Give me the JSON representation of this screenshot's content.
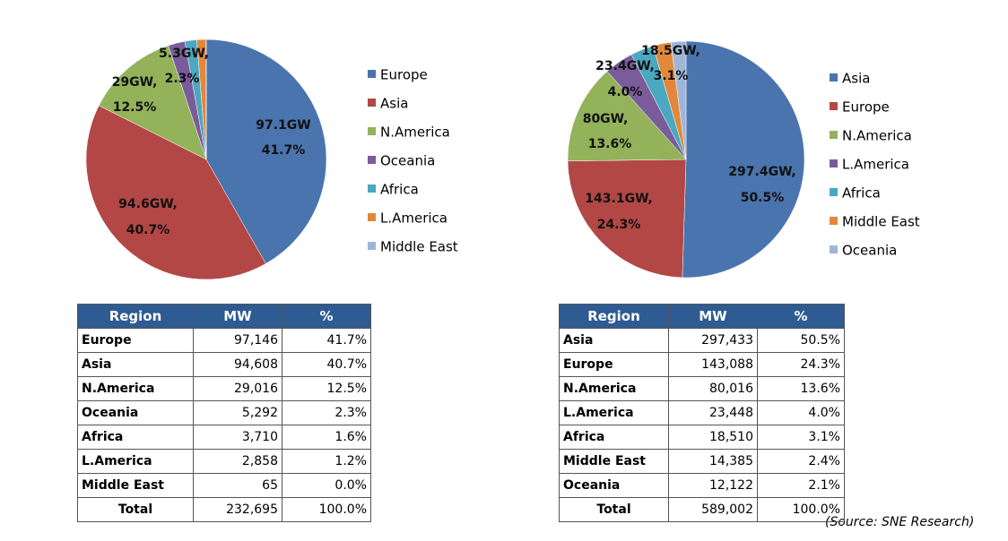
{
  "chart_data": [
    {
      "type": "pie",
      "categories": [
        "Europe",
        "Asia",
        "N.America",
        "Oceania",
        "Africa",
        "L.America",
        "Middle East"
      ],
      "values": [
        97.146,
        94.608,
        29.016,
        5.292,
        3.71,
        2.858,
        0.065
      ],
      "value_labels": [
        [
          "97.1GW",
          "41.7%"
        ],
        [
          "94.6GW,",
          "40.7%"
        ],
        [
          "29GW,",
          "12.5%"
        ],
        [
          "5.3GW,",
          "2.3%"
        ],
        null,
        null,
        null
      ],
      "colors": [
        "#4a74ae",
        "#b24745",
        "#93b25a",
        "#7a5c9a",
        "#4aa8c0",
        "#e3873a",
        "#9fb6d9"
      ],
      "legend": "right"
    },
    {
      "type": "pie",
      "categories": [
        "Asia",
        "Europe",
        "N.America",
        "L.America",
        "Africa",
        "Middle East",
        "Oceania"
      ],
      "values": [
        297.433,
        143.088,
        80.016,
        23.448,
        18.51,
        14.385,
        12.122
      ],
      "value_labels": [
        [
          "297.4GW,",
          "50.5%"
        ],
        [
          "143.1GW,",
          "24.3%"
        ],
        [
          "80GW,",
          "13.6%"
        ],
        [
          "23.4GW,",
          "4.0%"
        ],
        [
          "18.5GW,",
          "3.1%"
        ],
        null,
        null
      ],
      "colors": [
        "#4a74ae",
        "#b24745",
        "#93b25a",
        "#7a5c9a",
        "#4aa8c0",
        "#e3873a",
        "#9fb6d9"
      ],
      "legend": "right"
    }
  ],
  "tables": [
    {
      "header": [
        "Region",
        "MW",
        "%"
      ],
      "rows": [
        [
          "Europe",
          "97,146",
          "41.7%"
        ],
        [
          "Asia",
          "94,608",
          "40.7%"
        ],
        [
          "N.America",
          "29,016",
          "12.5%"
        ],
        [
          "Oceania",
          "5,292",
          "2.3%"
        ],
        [
          "Africa",
          "3,710",
          "1.6%"
        ],
        [
          "L.America",
          "2,858",
          "1.2%"
        ],
        [
          "Middle East",
          "65",
          "0.0%"
        ],
        [
          "Total",
          "232,695",
          "100.0%"
        ]
      ]
    },
    {
      "header": [
        "Region",
        "MW",
        "%"
      ],
      "rows": [
        [
          "Asia",
          "297,433",
          "50.5%"
        ],
        [
          "Europe",
          "143,088",
          "24.3%"
        ],
        [
          "N.America",
          "80,016",
          "13.6%"
        ],
        [
          "L.America",
          "23,448",
          "4.0%"
        ],
        [
          "Africa",
          "18,510",
          "3.1%"
        ],
        [
          "Middle East",
          "14,385",
          "2.4%"
        ],
        [
          "Oceania",
          "12,122",
          "2.1%"
        ],
        [
          "Total",
          "589,002",
          "100.0%"
        ]
      ]
    }
  ],
  "source": "(Source: SNE Research)"
}
